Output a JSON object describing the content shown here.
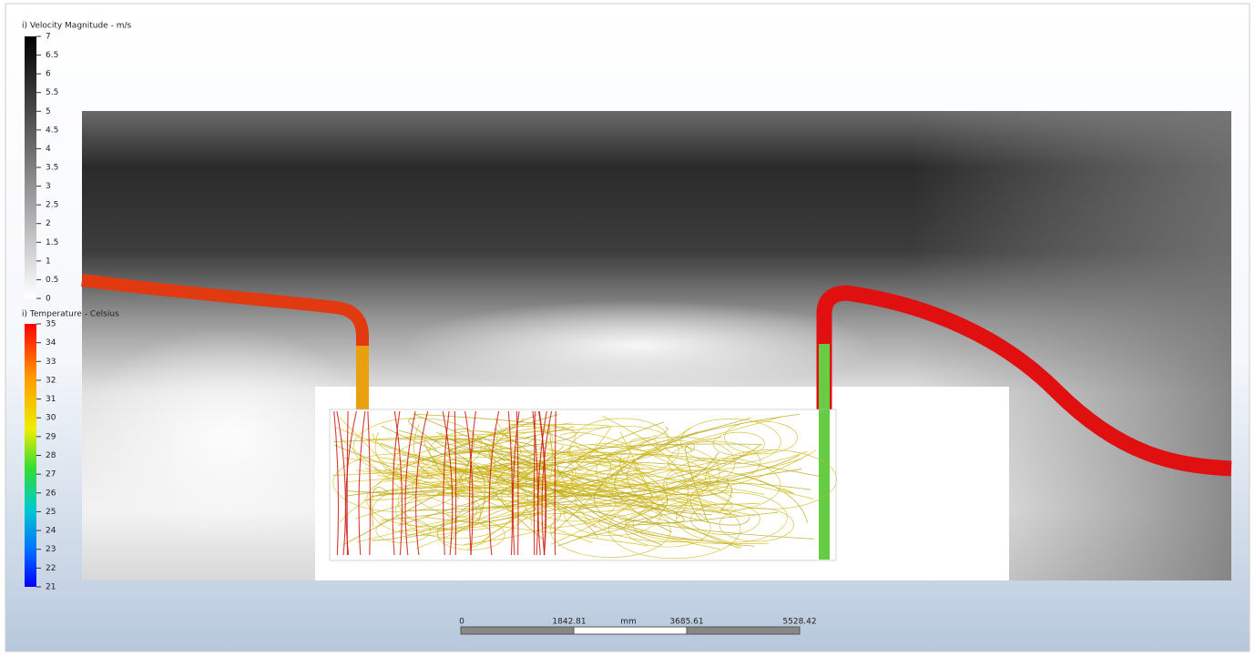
{
  "legends": [
    {
      "title": "i) Velocity Magnitude - m/s",
      "ticks": [
        0,
        0.5,
        1,
        1.5,
        2,
        2.5,
        3,
        3.5,
        4,
        4.5,
        5,
        5.5,
        6,
        6.5,
        7
      ]
    },
    {
      "title": "i) Temperature - Celsius",
      "ticks": [
        21,
        22,
        23,
        24,
        25,
        26,
        27,
        28,
        29,
        30,
        31,
        32,
        33,
        34,
        35
      ]
    }
  ],
  "scale_bar": {
    "labels": [
      "0",
      "1842.81",
      "mm",
      "3685.61",
      "5528.42"
    ]
  }
}
